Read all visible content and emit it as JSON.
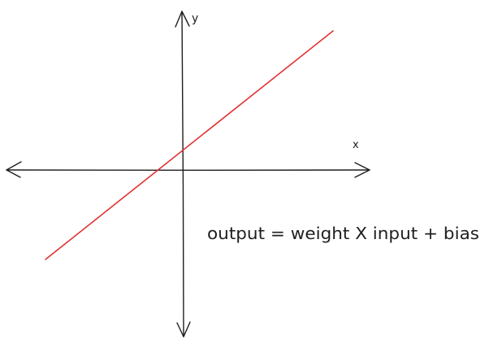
{
  "axes": {
    "x_label": "x",
    "y_label": "y"
  },
  "equation": "output = weight X input + bias",
  "colors": {
    "axis": "#1e1e1e",
    "line": "#e03131",
    "background": "#ffffff"
  }
}
